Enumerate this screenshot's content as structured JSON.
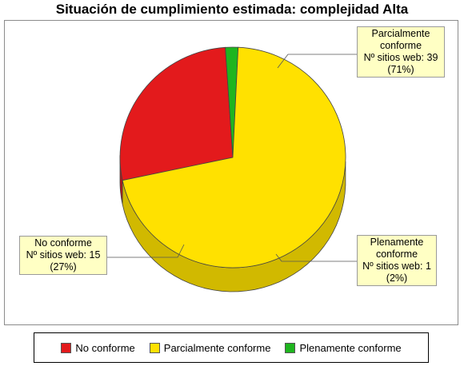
{
  "chart_data": {
    "type": "pie",
    "title": "Situación de cumplimiento estimada: complejidad Alta",
    "slices": [
      {
        "name": "No conforme",
        "value": 15,
        "percent": "27%",
        "color": "#e31a1c",
        "count_label": "Nº sitios web: 15"
      },
      {
        "name": "Parcialmente conforme",
        "value": 39,
        "percent": "71%",
        "color": "#ffe100",
        "count_label": "Nº sitios web: 39"
      },
      {
        "name": "Plenamente conforme",
        "value": 1,
        "percent": "2%",
        "color": "#1fb51f",
        "count_label": "Nº sitios web: 1"
      }
    ],
    "legend_position": "bottom"
  },
  "callouts": {
    "parcial": {
      "line1": "Parcialmente",
      "line2": "conforme",
      "line3": "Nº sitios web: 39",
      "line4": "(71%)"
    },
    "no": {
      "line1": "No conforme",
      "line2": "Nº sitios web: 15",
      "line3": "(27%)"
    },
    "plena": {
      "line1": "Plenamente",
      "line2": "conforme",
      "line3": "Nº sitios web: 1",
      "line4": "(2%)"
    }
  },
  "legend": {
    "items": [
      "No conforme",
      "Parcialmente conforme",
      "Plenamente conforme"
    ]
  }
}
